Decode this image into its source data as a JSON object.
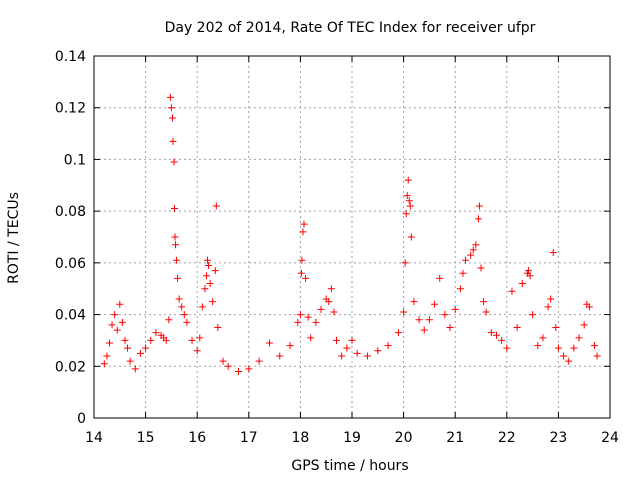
{
  "chart_data": {
    "type": "scatter",
    "title": "Day 202 of 2014, Rate Of TEC Index for receiver ufpr",
    "xlabel": "GPS time / hours",
    "ylabel": "ROTI / TECUs",
    "xlim": [
      14,
      24
    ],
    "ylim": [
      0,
      0.14
    ],
    "xticks": [
      14,
      15,
      16,
      17,
      18,
      19,
      20,
      21,
      22,
      23,
      24
    ],
    "yticks": [
      0,
      0.02,
      0.04,
      0.06,
      0.08,
      0.1,
      0.12,
      0.14
    ],
    "xtick_labels": [
      "14",
      "15",
      "16",
      "17",
      "18",
      "19",
      "20",
      "21",
      "22",
      "23",
      "24"
    ],
    "ytick_labels": [
      "0",
      "0.02",
      "0.04",
      "0.06",
      "0.08",
      "0.1",
      "0.12",
      "0.14"
    ],
    "grid": true,
    "marker": "+",
    "series": [
      {
        "name": "ROTI",
        "color": "#ff0000",
        "points": [
          [
            14.2,
            0.021
          ],
          [
            14.25,
            0.024
          ],
          [
            14.3,
            0.029
          ],
          [
            14.35,
            0.036
          ],
          [
            14.4,
            0.04
          ],
          [
            14.45,
            0.034
          ],
          [
            14.5,
            0.044
          ],
          [
            14.55,
            0.037
          ],
          [
            14.6,
            0.03
          ],
          [
            14.65,
            0.027
          ],
          [
            14.7,
            0.022
          ],
          [
            14.8,
            0.019
          ],
          [
            14.9,
            0.025
          ],
          [
            15.0,
            0.027
          ],
          [
            15.1,
            0.03
          ],
          [
            15.2,
            0.033
          ],
          [
            15.3,
            0.032
          ],
          [
            15.35,
            0.031
          ],
          [
            15.4,
            0.03
          ],
          [
            15.45,
            0.038
          ],
          [
            15.48,
            0.124
          ],
          [
            15.5,
            0.12
          ],
          [
            15.52,
            0.116
          ],
          [
            15.53,
            0.107
          ],
          [
            15.55,
            0.099
          ],
          [
            15.56,
            0.081
          ],
          [
            15.57,
            0.07
          ],
          [
            15.58,
            0.067
          ],
          [
            15.6,
            0.061
          ],
          [
            15.62,
            0.054
          ],
          [
            15.65,
            0.046
          ],
          [
            15.7,
            0.043
          ],
          [
            15.75,
            0.04
          ],
          [
            15.8,
            0.037
          ],
          [
            15.9,
            0.03
          ],
          [
            16.0,
            0.026
          ],
          [
            16.05,
            0.031
          ],
          [
            16.1,
            0.043
          ],
          [
            16.15,
            0.05
          ],
          [
            16.18,
            0.055
          ],
          [
            16.2,
            0.061
          ],
          [
            16.22,
            0.059
          ],
          [
            16.25,
            0.052
          ],
          [
            16.3,
            0.045
          ],
          [
            16.35,
            0.057
          ],
          [
            16.37,
            0.082
          ],
          [
            16.4,
            0.035
          ],
          [
            16.5,
            0.022
          ],
          [
            16.6,
            0.02
          ],
          [
            16.8,
            0.018
          ],
          [
            17.0,
            0.019
          ],
          [
            17.2,
            0.022
          ],
          [
            17.4,
            0.029
          ],
          [
            17.6,
            0.024
          ],
          [
            17.8,
            0.028
          ],
          [
            17.95,
            0.037
          ],
          [
            18.0,
            0.04
          ],
          [
            18.02,
            0.056
          ],
          [
            18.03,
            0.061
          ],
          [
            18.05,
            0.072
          ],
          [
            18.07,
            0.075
          ],
          [
            18.1,
            0.054
          ],
          [
            18.15,
            0.039
          ],
          [
            18.2,
            0.031
          ],
          [
            18.3,
            0.037
          ],
          [
            18.4,
            0.042
          ],
          [
            18.5,
            0.046
          ],
          [
            18.55,
            0.045
          ],
          [
            18.6,
            0.05
          ],
          [
            18.65,
            0.041
          ],
          [
            18.7,
            0.03
          ],
          [
            18.8,
            0.024
          ],
          [
            18.9,
            0.027
          ],
          [
            19.0,
            0.03
          ],
          [
            19.1,
            0.025
          ],
          [
            19.3,
            0.024
          ],
          [
            19.5,
            0.026
          ],
          [
            19.7,
            0.028
          ],
          [
            19.9,
            0.033
          ],
          [
            20.0,
            0.041
          ],
          [
            20.03,
            0.06
          ],
          [
            20.05,
            0.079
          ],
          [
            20.07,
            0.086
          ],
          [
            20.09,
            0.092
          ],
          [
            20.11,
            0.084
          ],
          [
            20.13,
            0.082
          ],
          [
            20.15,
            0.07
          ],
          [
            20.2,
            0.045
          ],
          [
            20.3,
            0.038
          ],
          [
            20.4,
            0.034
          ],
          [
            20.5,
            0.038
          ],
          [
            20.6,
            0.044
          ],
          [
            20.7,
            0.054
          ],
          [
            20.8,
            0.04
          ],
          [
            20.9,
            0.035
          ],
          [
            21.0,
            0.042
          ],
          [
            21.1,
            0.05
          ],
          [
            21.15,
            0.056
          ],
          [
            21.2,
            0.061
          ],
          [
            21.3,
            0.063
          ],
          [
            21.35,
            0.065
          ],
          [
            21.4,
            0.067
          ],
          [
            21.45,
            0.077
          ],
          [
            21.47,
            0.082
          ],
          [
            21.5,
            0.058
          ],
          [
            21.55,
            0.045
          ],
          [
            21.6,
            0.041
          ],
          [
            21.7,
            0.033
          ],
          [
            21.8,
            0.032
          ],
          [
            21.9,
            0.03
          ],
          [
            22.0,
            0.027
          ],
          [
            22.1,
            0.049
          ],
          [
            22.2,
            0.035
          ],
          [
            22.3,
            0.052
          ],
          [
            22.4,
            0.056
          ],
          [
            22.42,
            0.057
          ],
          [
            22.45,
            0.055
          ],
          [
            22.5,
            0.04
          ],
          [
            22.6,
            0.028
          ],
          [
            22.7,
            0.031
          ],
          [
            22.8,
            0.043
          ],
          [
            22.85,
            0.046
          ],
          [
            22.9,
            0.064
          ],
          [
            22.95,
            0.035
          ],
          [
            23.0,
            0.027
          ],
          [
            23.1,
            0.024
          ],
          [
            23.2,
            0.022
          ],
          [
            23.3,
            0.027
          ],
          [
            23.4,
            0.031
          ],
          [
            23.5,
            0.036
          ],
          [
            23.55,
            0.044
          ],
          [
            23.6,
            0.043
          ],
          [
            23.7,
            0.028
          ],
          [
            23.75,
            0.024
          ]
        ]
      }
    ]
  }
}
